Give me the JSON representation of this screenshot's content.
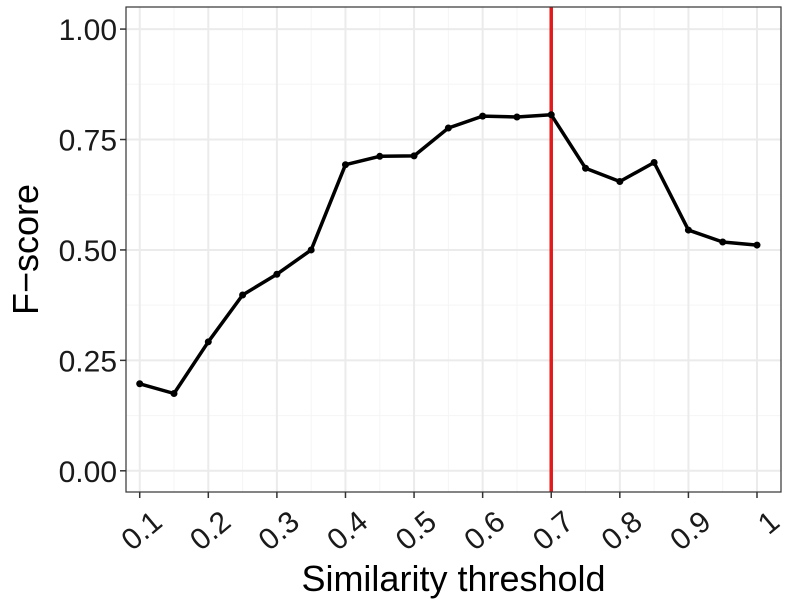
{
  "chart_data": {
    "type": "line",
    "title": "",
    "xlabel": "Similarity threshold",
    "ylabel": "F−score",
    "x": [
      0.1,
      0.15,
      0.2,
      0.25,
      0.3,
      0.35,
      0.4,
      0.45,
      0.5,
      0.55,
      0.6,
      0.65,
      0.7,
      0.75,
      0.8,
      0.85,
      0.9,
      0.95,
      1.0
    ],
    "series": [
      {
        "values": [
          0.197,
          0.175,
          0.292,
          0.398,
          0.445,
          0.5,
          0.693,
          0.712,
          0.713,
          0.776,
          0.803,
          0.801,
          0.806,
          0.685,
          0.655,
          0.698,
          0.545,
          0.518,
          0.511
        ]
      }
    ],
    "xlim": [
      0.08,
      1.035
    ],
    "ylim": [
      -0.048,
      1.05
    ],
    "x_ticks": [
      0.1,
      0.2,
      0.3,
      0.4,
      0.5,
      0.6,
      0.7,
      0.8,
      0.9,
      1.0
    ],
    "x_tick_labels": [
      "0.1",
      "0.2",
      "0.3",
      "0.4",
      "0.5",
      "0.6",
      "0.7",
      "0.8",
      "0.9",
      "1"
    ],
    "y_ticks": [
      0,
      0.25,
      0.5,
      0.75,
      1.0
    ],
    "y_tick_labels": [
      "0.00",
      "0.25",
      "0.50",
      "0.75",
      "1.00"
    ],
    "reference_line": {
      "axis": "x",
      "value": 0.7,
      "color": "#e31a1c"
    },
    "grid": true,
    "legend": "none",
    "colors": {
      "line": "#000000",
      "reference": "#e31a1c",
      "grid_major": "#ebebeb",
      "grid_minor": "#f5f5f5",
      "panel_border": "#333333"
    }
  }
}
